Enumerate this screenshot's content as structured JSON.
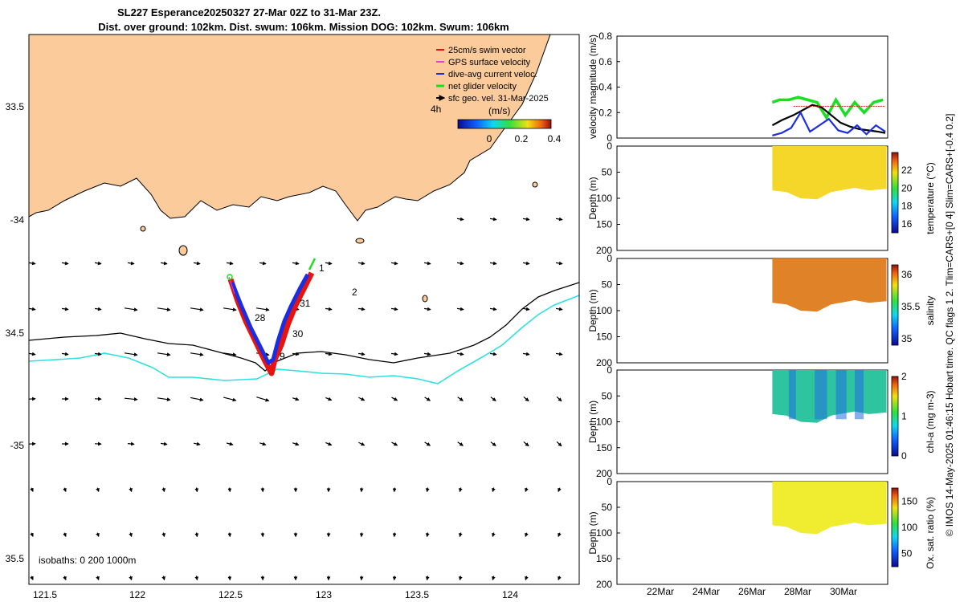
{
  "title_line1": "SL227 Esperance20250327 27-Mar 02Z to 31-Mar 23Z.",
  "title_line2": "Dist. over ground: 102km. Dist. swum: 106km. Mission DOG: 102km. Swum: 106km",
  "copyright": "© IMOS 14-May-2025 01:46:15 Hobart time. QC flags 1  2. Tlim=CARS+[0 4] Slim=CARS+[-0.4 0.2]",
  "colors": {
    "land": "#fbcb9c",
    "track_red": "#e8120f",
    "track_blue": "#1b2de0",
    "green": "#18e020",
    "cyan": "#2fe0e0"
  },
  "map": {
    "lon_ticks": [
      "121.5",
      "122",
      "122.5",
      "123",
      "123.5",
      "124"
    ],
    "lat_ticks": [
      "33.5",
      "-34",
      "34.5",
      "-35",
      "35.5"
    ],
    "isobaths_label": "isobaths: 0   200  1000m",
    "legend": [
      {
        "label": "25cm/s swim vector",
        "color": "#e8120f"
      },
      {
        "label": "GPS surface velocity",
        "color": "#e040e0"
      },
      {
        "label": "dive-avg current veloc.",
        "color": "#1b2de0"
      },
      {
        "label": "net glider velocity",
        "color": "#18e020"
      },
      {
        "label": "sfc geo. vel. 31-Mar-2025",
        "color": "#000000"
      }
    ],
    "colorbar_title": "(m/s)",
    "colorbar_ticks": [
      "0",
      "0.2",
      "0.4"
    ],
    "time_label": "4h",
    "day_labels": [
      "1",
      "2",
      "31",
      "30",
      "28",
      "9"
    ],
    "track_points": [
      [
        122.5,
        -34.25
      ],
      [
        122.7,
        -34.68
      ],
      [
        122.93,
        -34.2
      ]
    ]
  },
  "chart_data": [
    {
      "type": "line",
      "title": "",
      "ylabel": "velocity magnitude (m/s)",
      "ylim": [
        0,
        0.8
      ],
      "yticks": [
        "0",
        "0.2",
        "0.4",
        "0.6",
        "0.8"
      ],
      "x_ticks": [
        "22Mar",
        "24Mar",
        "26Mar",
        "28Mar",
        "30Mar"
      ],
      "series": [
        {
          "name": "net glider velocity",
          "color": "#18e020",
          "x": [
            27.1,
            27.4,
            27.8,
            28.2,
            28.6,
            29.0,
            29.4,
            29.8,
            30.2,
            30.6,
            31.0,
            31.4,
            31.8
          ],
          "values": [
            0.28,
            0.3,
            0.3,
            0.32,
            0.3,
            0.28,
            0.16,
            0.3,
            0.18,
            0.28,
            0.2,
            0.28,
            0.3
          ]
        },
        {
          "name": "sfc geo. vel.",
          "color": "#000000",
          "x": [
            27.1,
            27.5,
            28.0,
            28.4,
            28.8,
            29.2,
            29.6,
            30.0,
            30.4,
            30.8,
            31.2,
            31.6,
            31.9
          ],
          "values": [
            0.1,
            0.14,
            0.18,
            0.22,
            0.26,
            0.24,
            0.18,
            0.12,
            0.09,
            0.07,
            0.06,
            0.05,
            0.04
          ]
        },
        {
          "name": "dive-avg current",
          "color": "#1b2de0",
          "x": [
            27.1,
            27.5,
            27.9,
            28.3,
            28.7,
            29.1,
            29.5,
            29.9,
            30.3,
            30.7,
            31.1,
            31.5,
            31.9
          ],
          "values": [
            0.02,
            0.04,
            0.08,
            0.2,
            0.05,
            0.1,
            0.15,
            0.06,
            0.04,
            0.1,
            0.03,
            0.1,
            0.05
          ]
        },
        {
          "name": "swim vector",
          "color": "#e8120f",
          "x": [
            28.0,
            31.9
          ],
          "values": [
            0.25,
            0.25
          ]
        }
      ]
    },
    {
      "type": "heatmap",
      "ylabel": "Depth (m)",
      "clabel": "temperature (°C)",
      "yticks": [
        "0",
        "50",
        "100",
        "150",
        "200"
      ],
      "cticks": [
        "16",
        "18",
        "20",
        "22"
      ],
      "clim": [
        15,
        24
      ],
      "value_range": [
        22,
        23
      ]
    },
    {
      "type": "heatmap",
      "ylabel": "Depth (m)",
      "clabel": "salinity",
      "yticks": [
        "0",
        "50",
        "100",
        "150",
        "200"
      ],
      "cticks": [
        "35",
        "35.5",
        "36"
      ],
      "clim": [
        34.9,
        36.15
      ],
      "value_range": [
        35.9,
        36.0
      ]
    },
    {
      "type": "heatmap",
      "ylabel": "Depth (m)",
      "clabel": "chl-a (mg m-3)",
      "yticks": [
        "0",
        "50",
        "100",
        "150",
        "200"
      ],
      "cticks": [
        "0",
        "1",
        "2"
      ],
      "clim": [
        0,
        2
      ],
      "value_range": [
        0.4,
        1.2
      ]
    },
    {
      "type": "heatmap",
      "ylabel": "Depth (m)",
      "clabel": "Ox. sat. ratio (%)",
      "yticks": [
        "0",
        "50",
        "100",
        "150",
        "200"
      ],
      "cticks": [
        "50",
        "100",
        "150"
      ],
      "clim": [
        25,
        175
      ],
      "value_range": [
        140,
        150
      ]
    }
  ]
}
